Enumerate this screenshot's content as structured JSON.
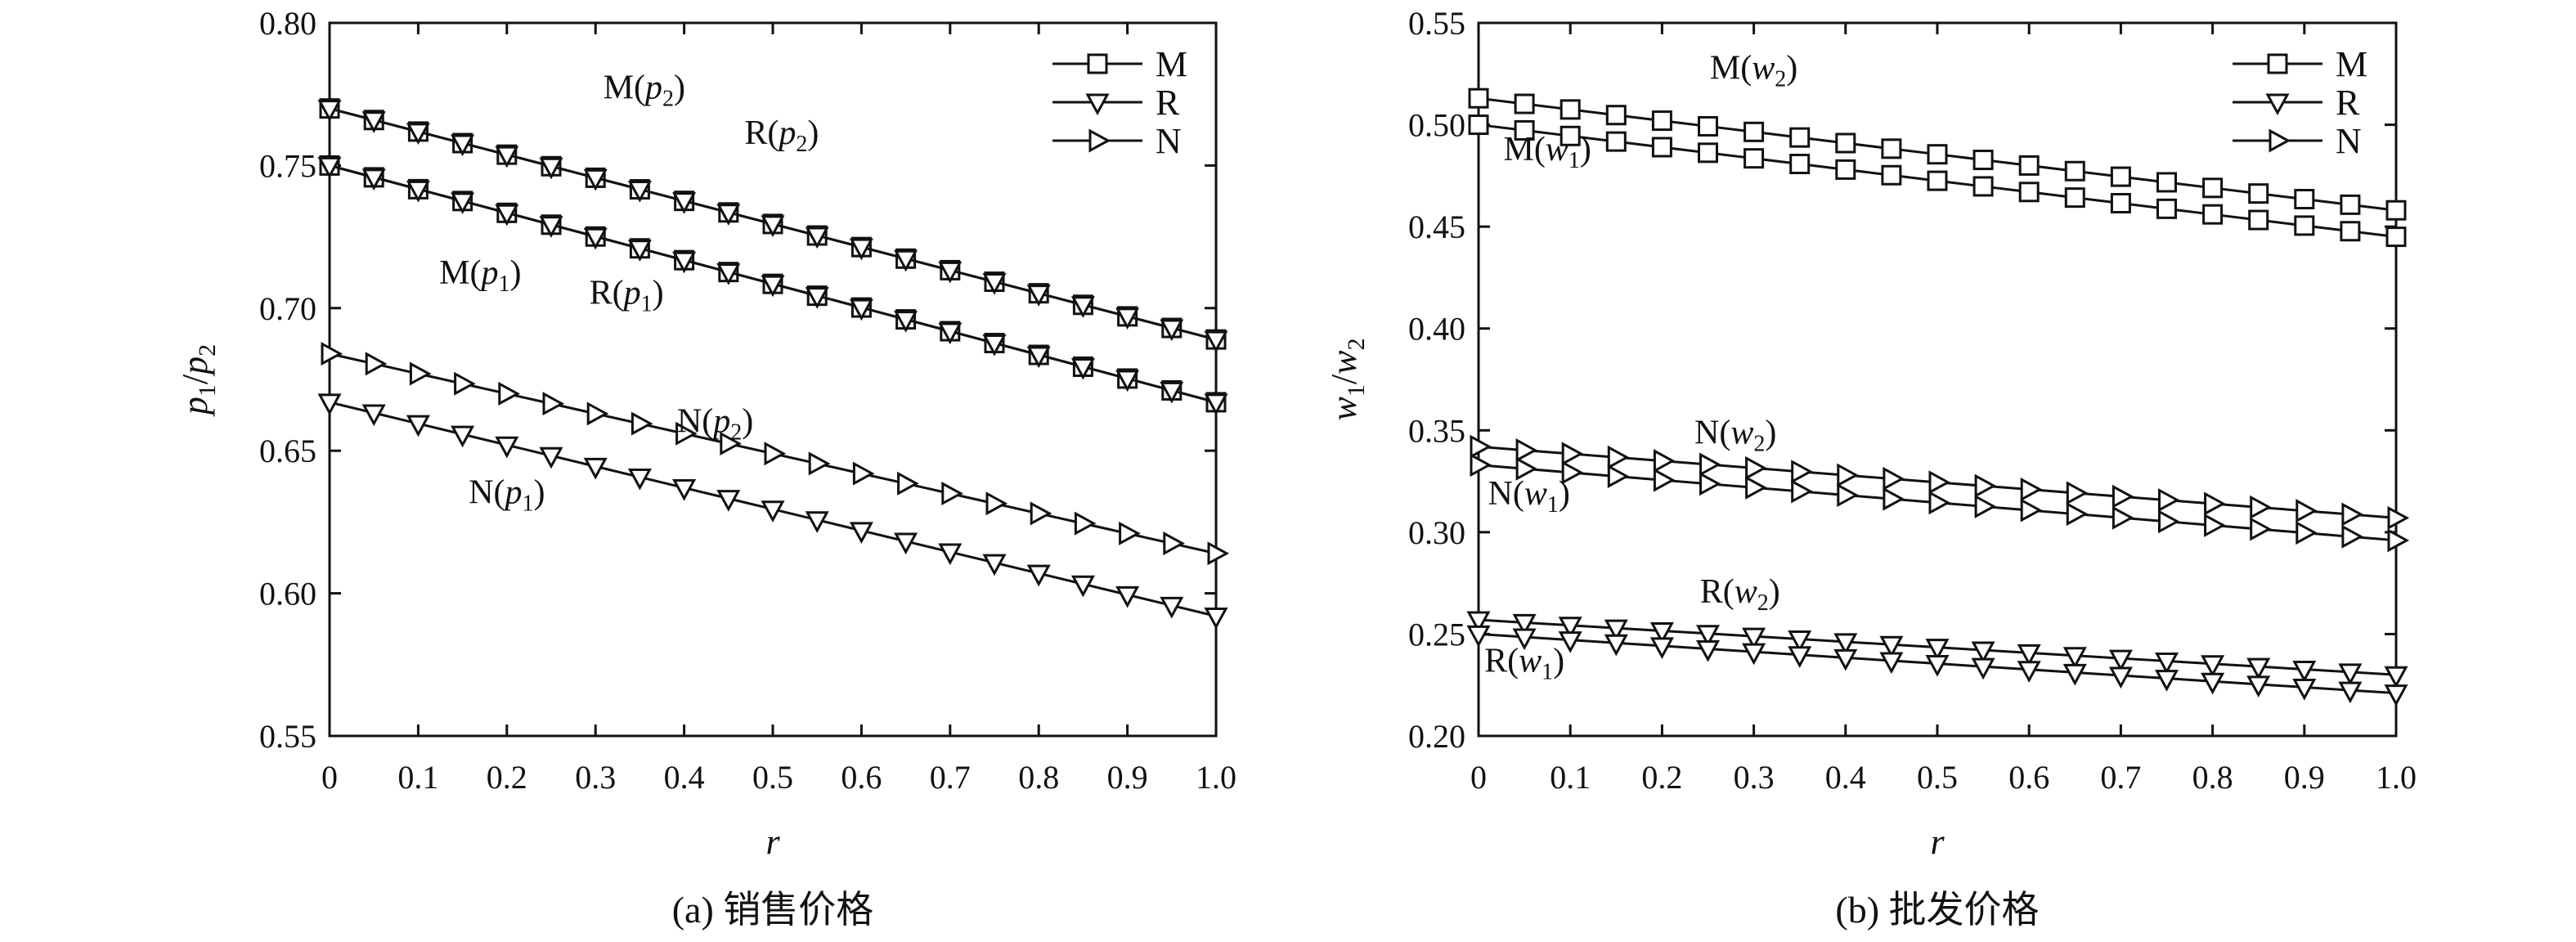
{
  "chart_data": [
    {
      "type": "line",
      "caption": "(a) 销售价格",
      "xlabel": "r",
      "ylabel_base": "p",
      "ylabel_sub1": "1",
      "ylabel_sep": "/",
      "ylabel_sub2": "2",
      "xlim": [
        0,
        1.0
      ],
      "ylim": [
        0.55,
        0.8
      ],
      "xticks": [
        0,
        0.1,
        0.2,
        0.3,
        0.4,
        0.5,
        0.6,
        0.7,
        0.8,
        0.9,
        1.0
      ],
      "xtick_labels": [
        "0",
        "0.1",
        "0.2",
        "0.3",
        "0.4",
        "0.5",
        "0.6",
        "0.7",
        "0.8",
        "0.9",
        "1.0"
      ],
      "yticks": [
        0.55,
        0.6,
        0.65,
        0.7,
        0.75,
        0.8
      ],
      "ytick_labels": [
        "0.55",
        "0.60",
        "0.65",
        "0.70",
        "0.75",
        "0.80"
      ],
      "legend": {
        "position": "top-right",
        "entries": [
          {
            "label": "M",
            "marker": "square"
          },
          {
            "label": "R",
            "marker": "triangle-down"
          },
          {
            "label": "N",
            "marker": "triangle-right"
          }
        ]
      },
      "x": [
        0,
        0.05,
        0.1,
        0.15,
        0.2,
        0.25,
        0.3,
        0.35,
        0.4,
        0.45,
        0.5,
        0.55,
        0.6,
        0.65,
        0.7,
        0.75,
        0.8,
        0.85,
        0.9,
        0.95,
        1.0
      ],
      "series": [
        {
          "name": "M(p2)",
          "marker": "square",
          "start": 0.77,
          "end": 0.689
        },
        {
          "name": "R(p2)",
          "marker": "triangle-down",
          "start": 0.77,
          "end": 0.689
        },
        {
          "name": "M(p1)",
          "marker": "square",
          "start": 0.75,
          "end": 0.667
        },
        {
          "name": "R(p1)",
          "marker": "triangle-down",
          "start": 0.75,
          "end": 0.667
        },
        {
          "name": "N(p2)",
          "marker": "triangle-right",
          "start": 0.684,
          "end": 0.614
        },
        {
          "name": "N(p1)",
          "marker": "triangle-down",
          "start": 0.667,
          "end": 0.592
        }
      ],
      "annotations": [
        {
          "base": "M(",
          "var": "p",
          "sub": "2",
          "close": ")",
          "x": 0.355,
          "y": 0.7735
        },
        {
          "base": "R(",
          "var": "p",
          "sub": "2",
          "close": ")",
          "x": 0.51,
          "y": 0.7575
        },
        {
          "base": "M(",
          "var": "p",
          "sub": "1",
          "close": ")",
          "x": 0.17,
          "y": 0.7085
        },
        {
          "base": "R(",
          "var": "p",
          "sub": "1",
          "close": ")",
          "x": 0.335,
          "y": 0.7015
        },
        {
          "base": "N(",
          "var": "p",
          "sub": "2",
          "close": ")",
          "x": 0.435,
          "y": 0.6565
        },
        {
          "base": "N(",
          "var": "p",
          "sub": "1",
          "close": ")",
          "x": 0.2,
          "y": 0.6315
        }
      ]
    },
    {
      "type": "line",
      "caption": "(b) 批发价格",
      "xlabel": "r",
      "ylabel_base": "w",
      "ylabel_sub1": "1",
      "ylabel_sep": "/",
      "ylabel_sub2": "2",
      "xlim": [
        0,
        1.0
      ],
      "ylim": [
        0.2,
        0.55
      ],
      "xticks": [
        0,
        0.1,
        0.2,
        0.3,
        0.4,
        0.5,
        0.6,
        0.7,
        0.8,
        0.9,
        1.0
      ],
      "xtick_labels": [
        "0",
        "0.1",
        "0.2",
        "0.3",
        "0.4",
        "0.5",
        "0.6",
        "0.7",
        "0.8",
        "0.9",
        "1.0"
      ],
      "yticks": [
        0.2,
        0.25,
        0.3,
        0.35,
        0.4,
        0.45,
        0.5,
        0.55
      ],
      "ytick_labels": [
        "0.20",
        "0.25",
        "0.30",
        "0.35",
        "0.40",
        "0.45",
        "0.50",
        "0.55"
      ],
      "legend": {
        "position": "top-right",
        "entries": [
          {
            "label": "M",
            "marker": "square"
          },
          {
            "label": "R",
            "marker": "triangle-down"
          },
          {
            "label": "N",
            "marker": "triangle-right"
          }
        ]
      },
      "x": [
        0,
        0.05,
        0.1,
        0.15,
        0.2,
        0.25,
        0.3,
        0.35,
        0.4,
        0.45,
        0.5,
        0.55,
        0.6,
        0.65,
        0.7,
        0.75,
        0.8,
        0.85,
        0.9,
        0.95,
        1.0
      ],
      "series": [
        {
          "name": "M(w2)",
          "marker": "square",
          "start": 0.513,
          "end": 0.458
        },
        {
          "name": "M(w1)",
          "marker": "square",
          "start": 0.5,
          "end": 0.445
        },
        {
          "name": "N(w2)",
          "marker": "triangle-right",
          "start": 0.342,
          "end": 0.307
        },
        {
          "name": "N(w1)",
          "marker": "triangle-right",
          "start": 0.333,
          "end": 0.296
        },
        {
          "name": "R(w2)",
          "marker": "triangle-down",
          "start": 0.257,
          "end": 0.23
        },
        {
          "name": "R(w1)",
          "marker": "triangle-down",
          "start": 0.25,
          "end": 0.221
        }
      ],
      "annotations": [
        {
          "base": "M(",
          "var": "w",
          "sub": "2",
          "close": ")",
          "x": 0.3,
          "y": 0.5225
        },
        {
          "base": "M(",
          "var": "w",
          "sub": "1",
          "close": ")",
          "x": 0.075,
          "y": 0.4825
        },
        {
          "base": "N(",
          "var": "w",
          "sub": "2",
          "close": ")",
          "x": 0.28,
          "y": 0.3435
        },
        {
          "base": "N(",
          "var": "w",
          "sub": "1",
          "close": ")",
          "x": 0.055,
          "y": 0.3135
        },
        {
          "base": "R(",
          "var": "w",
          "sub": "2",
          "close": ")",
          "x": 0.285,
          "y": 0.2655
        },
        {
          "base": "R(",
          "var": "w",
          "sub": "1",
          "close": ")",
          "x": 0.05,
          "y": 0.2315
        }
      ]
    }
  ]
}
